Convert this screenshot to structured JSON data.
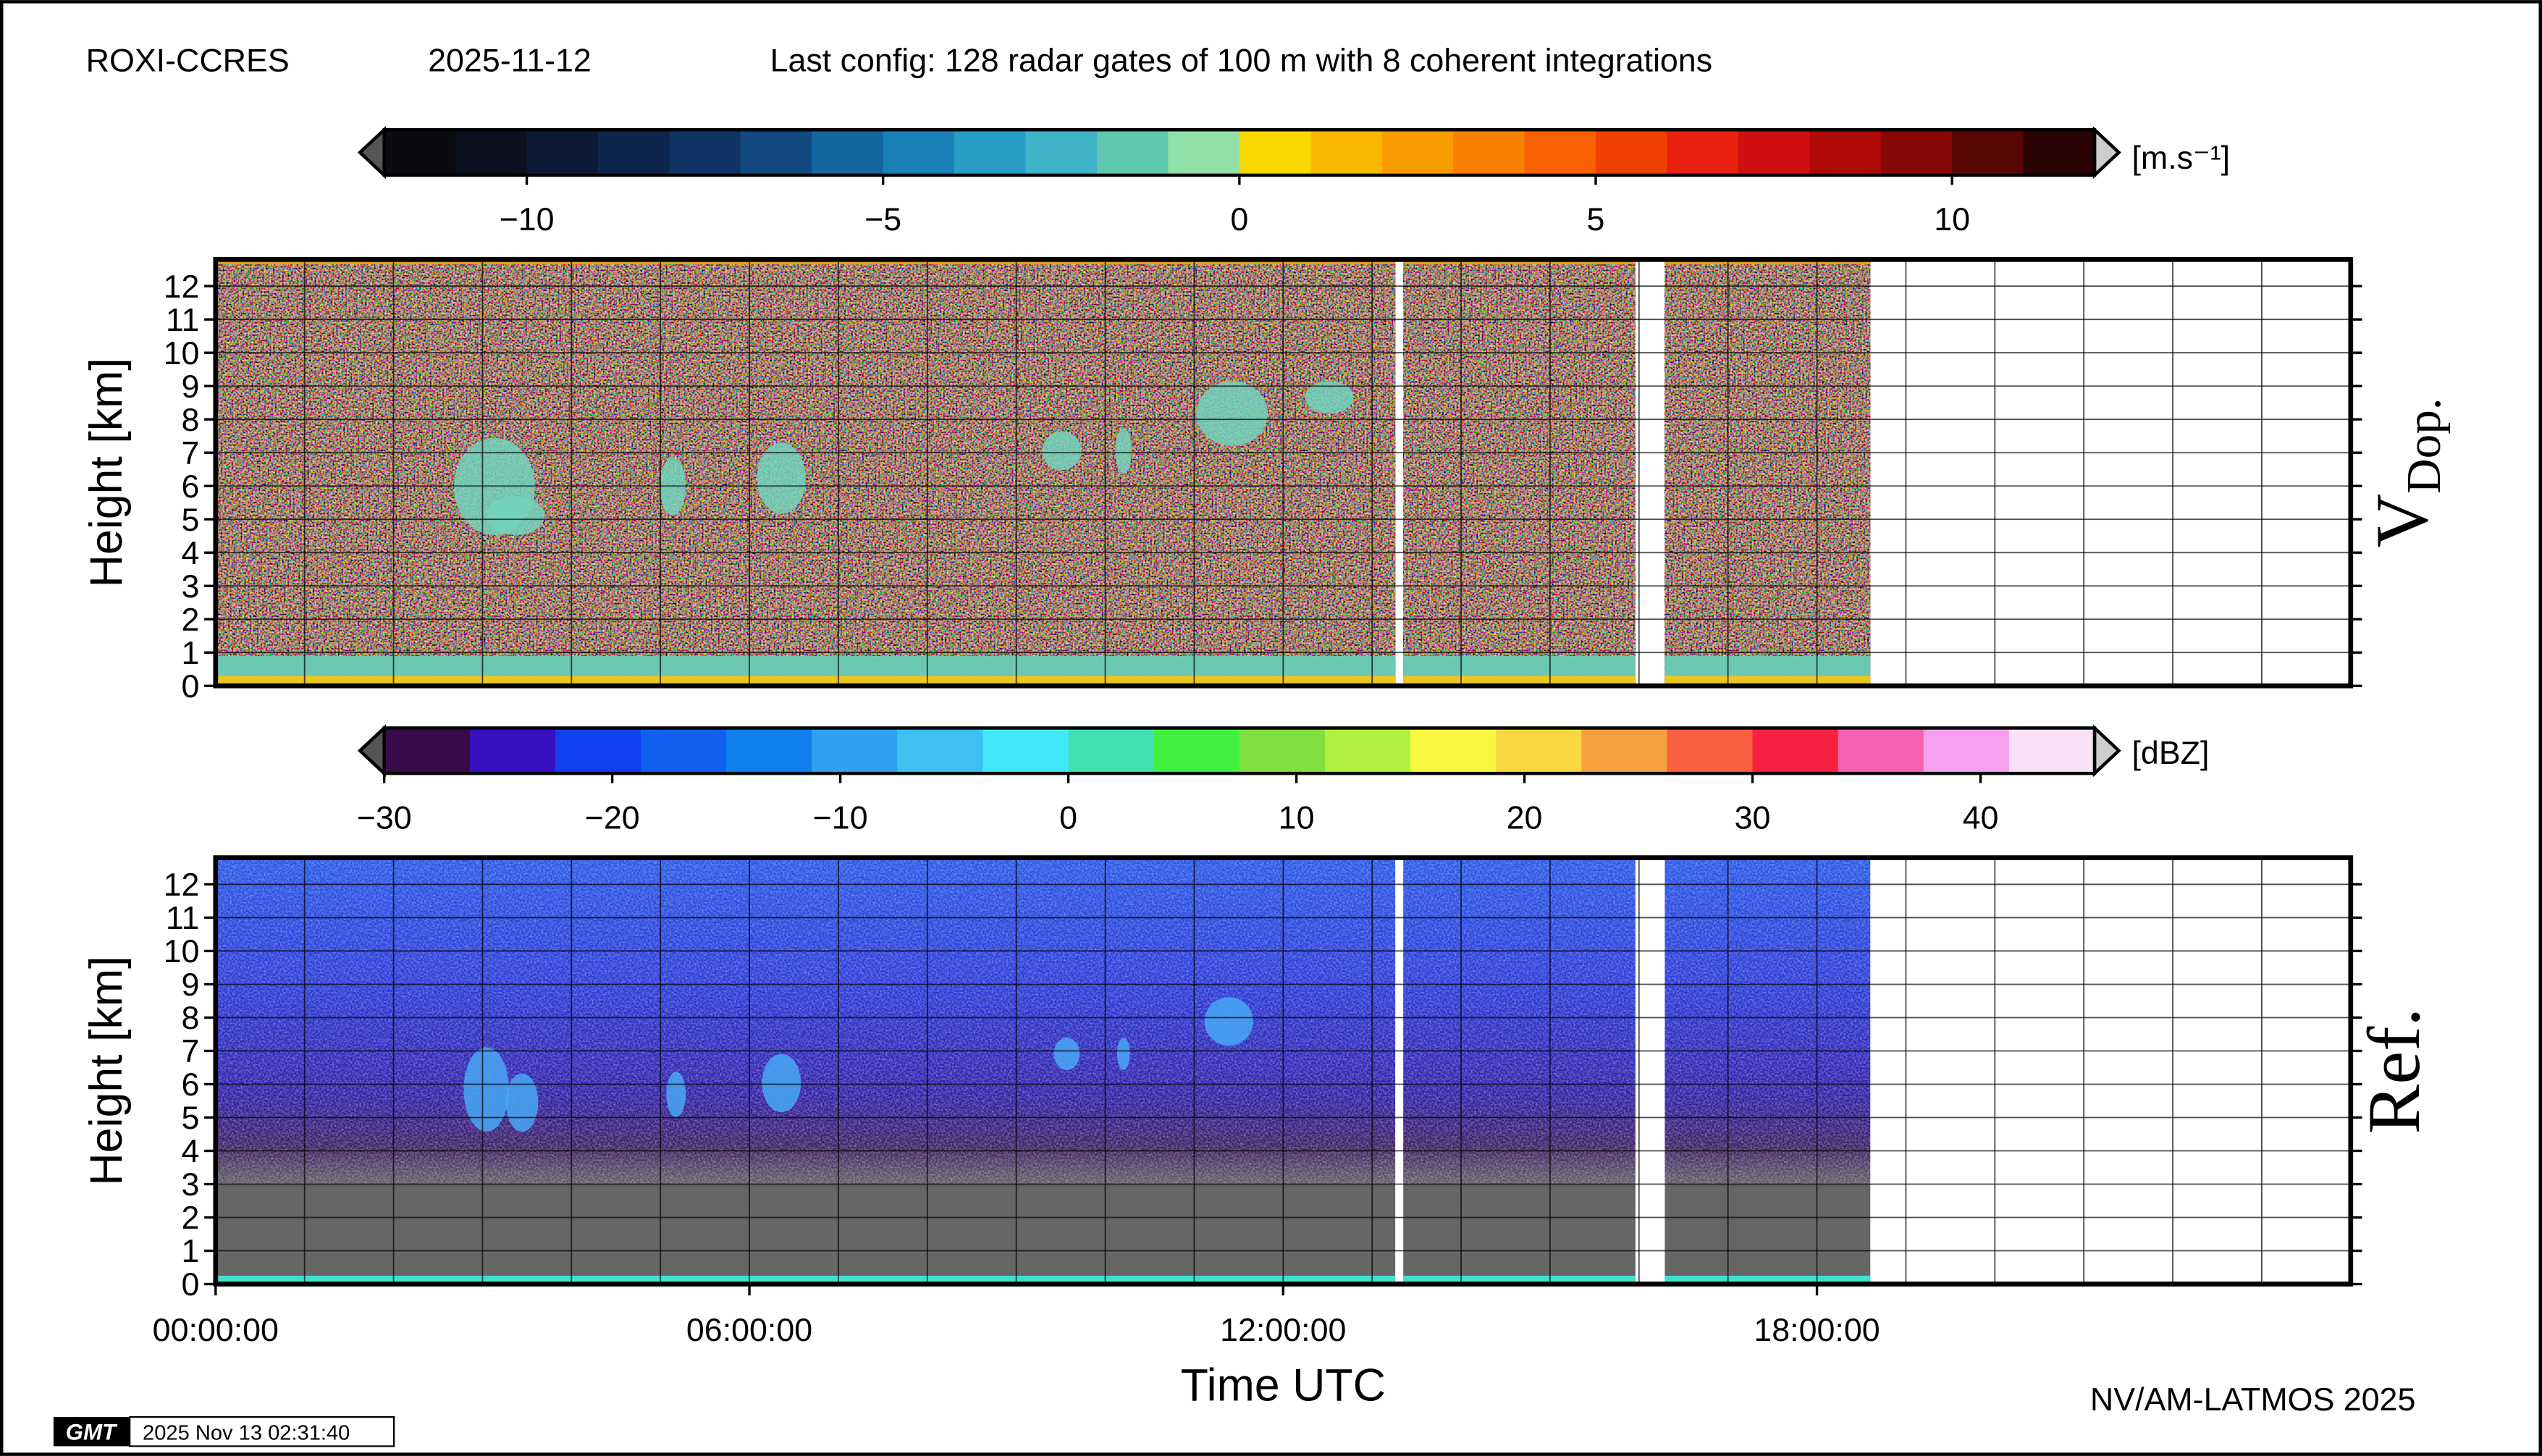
{
  "header": {
    "site": "ROXI-CCRES",
    "date": "2025-11-12",
    "config": "Last config: 128 radar gates of 100 m with 8 coherent integrations"
  },
  "footer": {
    "credit": "NV/AM-LATMOS 2025",
    "timestamp": "2025 Nov 13 02:31:40",
    "logo": "GMT"
  },
  "chart_data": [
    {
      "type": "heatmap",
      "panel_label": "V",
      "panel_label_sub": "Dop.",
      "ylabel": "Height [km]",
      "ylim": [
        0,
        12.8
      ],
      "yticks": [
        0,
        1,
        2,
        3,
        4,
        5,
        6,
        7,
        8,
        9,
        10,
        11,
        12
      ],
      "xlim": [
        0,
        24
      ],
      "xgrid": [
        1,
        2,
        3,
        4,
        5,
        6,
        7,
        8,
        9,
        10,
        11,
        12,
        13,
        14,
        15,
        16,
        17,
        18,
        19,
        20,
        21,
        22,
        23
      ],
      "grid": true,
      "coverage": [
        [
          0,
          13.26
        ],
        [
          13.35,
          15.96
        ],
        [
          16.29,
          18.6
        ]
      ],
      "colorbar": {
        "lim": [
          -12,
          12
        ],
        "unit": "[m.s⁻¹]",
        "ticks": [
          {
            "value": -10,
            "label": "−10"
          },
          {
            "value": -5,
            "label": "−5"
          },
          0,
          5,
          10
        ],
        "colors": [
          "#0a0a0f",
          "#0c1020",
          "#0d1a35",
          "#0f254d",
          "#103466",
          "#124a80",
          "#1466a0",
          "#1a80b8",
          "#2a9cc8",
          "#40b4c8",
          "#60c8b0",
          "#90e0a8",
          "#f8d800",
          "#f8b800",
          "#f89c00",
          "#f88000",
          "#f86000",
          "#f04000",
          "#e82010",
          "#d01010",
          "#b00a0a",
          "#880808",
          "#580505",
          "#2a0303"
        ]
      }
    },
    {
      "type": "heatmap",
      "panel_label": "Ref.",
      "ylabel": "Height [km]",
      "xlabel": "Time UTC",
      "ylim": [
        0,
        12.8
      ],
      "yticks": [
        0,
        1,
        2,
        3,
        4,
        5,
        6,
        7,
        8,
        9,
        10,
        11,
        12
      ],
      "xlim": [
        0,
        24
      ],
      "xgrid": [
        1,
        2,
        3,
        4,
        5,
        6,
        7,
        8,
        9,
        10,
        11,
        12,
        13,
        14,
        15,
        16,
        17,
        18,
        19,
        20,
        21,
        22,
        23
      ],
      "grid": true,
      "xticks": [
        {
          "value": 0,
          "label": "00:00:00"
        },
        {
          "value": 6,
          "label": "06:00:00"
        },
        {
          "value": 12,
          "label": "12:00:00"
        },
        {
          "value": 18,
          "label": "18:00:00"
        }
      ],
      "coverage": [
        [
          0,
          13.26
        ],
        [
          13.35,
          15.96
        ],
        [
          16.29,
          18.6
        ]
      ],
      "colorbar": {
        "lim": [
          -30,
          45
        ],
        "unit": "[dBZ]",
        "ticks": [
          {
            "value": -30,
            "label": "−30"
          },
          {
            "value": -20,
            "label": "−20"
          },
          {
            "value": -10,
            "label": "−10"
          },
          0,
          10,
          20,
          30,
          40
        ],
        "colors": [
          "#3a0a4a",
          "#3a10c0",
          "#1040f0",
          "#1060f0",
          "#1080f0",
          "#30a0f0",
          "#40c0f0",
          "#40e8f8",
          "#40e0b0",
          "#40f040",
          "#80e040",
          "#b0f040",
          "#f8f840",
          "#f8d840",
          "#f8a040",
          "#f86040",
          "#f82040",
          "#f860b0",
          "#f8a0f0",
          "#f8e0f8"
        ]
      }
    }
  ]
}
